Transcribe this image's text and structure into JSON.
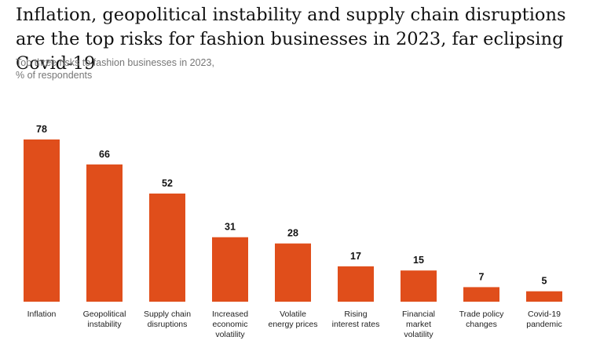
{
  "title": "Inflation, geopolitical instability and supply chain disruptions are the top risks for fashion businesses in 2023, far eclipsing Covid-19",
  "subtitle": {
    "line1": "Top three risks to fashion businesses in 2023,",
    "line2": "% of respondents"
  },
  "colors": {
    "bar": "#E04E1B"
  },
  "chart_data": {
    "type": "bar",
    "title": "Inflation, geopolitical instability and supply chain disruptions are the top risks for fashion businesses in 2023, far eclipsing Covid-19",
    "subtitle": "Top three risks to fashion businesses in 2023, % of respondents",
    "xlabel": "",
    "ylabel": "",
    "ylim": [
      0,
      78
    ],
    "grid": false,
    "categories": [
      [
        "Inflation"
      ],
      [
        "Geopolitical",
        "instability"
      ],
      [
        "Supply chain",
        "disruptions"
      ],
      [
        "Increased",
        "economic",
        "volatility"
      ],
      [
        "Volatile",
        "energy prices"
      ],
      [
        "Rising",
        "interest rates"
      ],
      [
        "Financial",
        "market",
        "volatility"
      ],
      [
        "Trade policy",
        "changes"
      ],
      [
        "Covid-19",
        "pandemic"
      ]
    ],
    "values": [
      78,
      66,
      52,
      31,
      28,
      17,
      15,
      7,
      5
    ]
  }
}
